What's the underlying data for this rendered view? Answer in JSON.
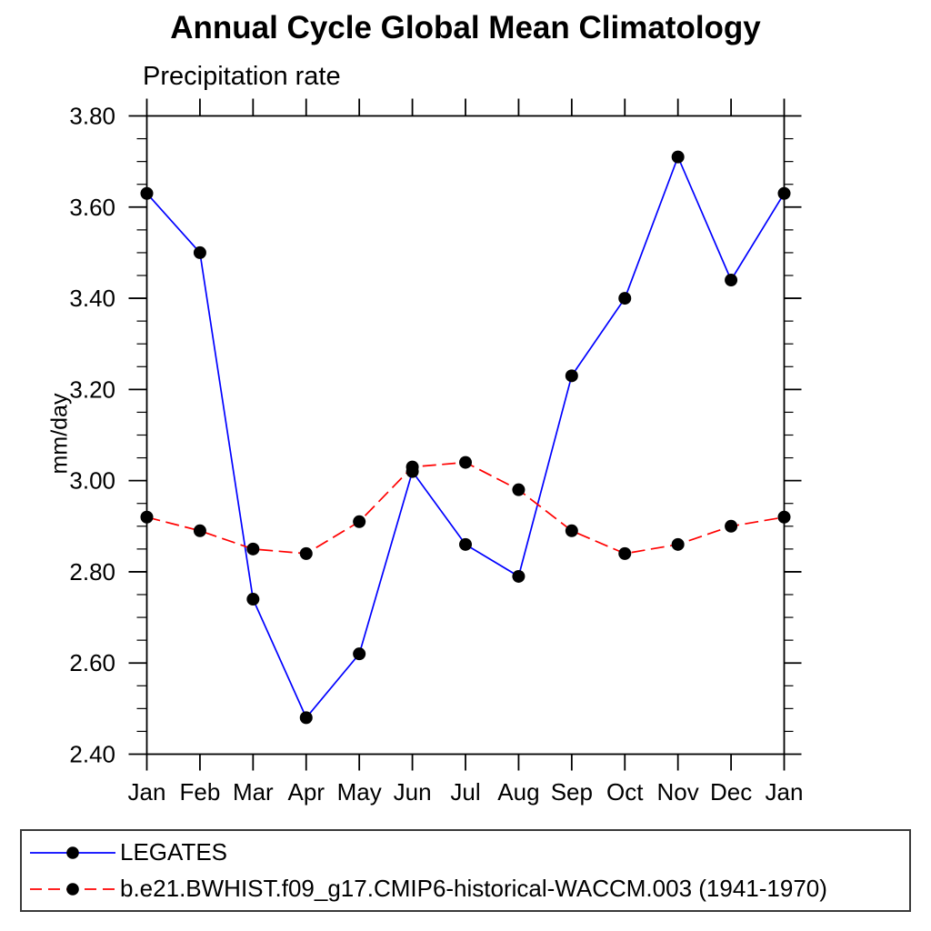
{
  "title": "Annual Cycle Global Mean Climatology",
  "subtitle": "Precipitation rate",
  "ylabel": "mm/day",
  "colors": {
    "series1": "#0000ff",
    "series2": "#ff0000",
    "marker": "#000000",
    "axis": "#000000",
    "background": "#ffffff"
  },
  "legend": {
    "position": "bottom-box",
    "items": [
      {
        "label": "LEGATES",
        "color": "#0000ff",
        "line_style": "solid",
        "marker": "filled-circle"
      },
      {
        "label": "b.e21.BWHIST.f09_g17.CMIP6-historical-WACCM.003 (1941-1970)",
        "color": "#ff0000",
        "line_style": "dashed",
        "marker": "filled-circle"
      }
    ]
  },
  "chart_data": {
    "type": "line",
    "title": "Annual Cycle Global Mean Climatology",
    "subtitle_left": "Precipitation rate",
    "ylabel": "mm/day",
    "categories": [
      "Jan",
      "Feb",
      "Mar",
      "Apr",
      "May",
      "Jun",
      "Jul",
      "Aug",
      "Sep",
      "Oct",
      "Nov",
      "Dec",
      "Jan"
    ],
    "series": [
      {
        "name": "LEGATES",
        "color": "#0000ff",
        "line_style": "solid",
        "marker": "filled-circle",
        "marker_color": "#000000",
        "values": [
          3.63,
          3.5,
          2.74,
          2.48,
          2.62,
          3.02,
          2.86,
          2.79,
          3.23,
          3.4,
          3.71,
          3.44,
          3.63
        ]
      },
      {
        "name": "b.e21.BWHIST.f09_g17.CMIP6-historical-WACCM.003 (1941-1970)",
        "color": "#ff0000",
        "line_style": "dashed",
        "marker": "filled-circle",
        "marker_color": "#000000",
        "values": [
          2.92,
          2.89,
          2.85,
          2.84,
          2.91,
          3.03,
          3.04,
          2.98,
          2.89,
          2.84,
          2.86,
          2.9,
          2.92
        ]
      }
    ],
    "ylim": [
      2.4,
      3.8
    ],
    "ytick_labels": [
      "3.80",
      "3.60",
      "3.40",
      "3.20",
      "3.00",
      "2.80",
      "2.60",
      "2.40"
    ],
    "ytick_step": 0.2,
    "yminor_step": 0.05,
    "grid": false,
    "legend_position": "bottom"
  }
}
